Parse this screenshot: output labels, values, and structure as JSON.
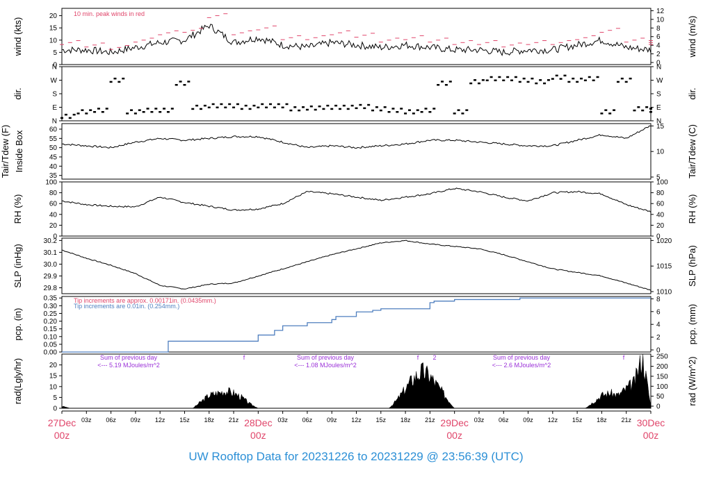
{
  "footer_title": "UW Rooftop Data for 20231226  to  20231229 @ 23:56:39  (UTC)",
  "colors": {
    "peak_red": "#e0456a",
    "pcp_blue": "#4f7fbf",
    "annot_purple": "#9a2fd8",
    "date_pink": "#e0456a",
    "footer_blue": "#2b8fd6"
  },
  "chart_data": [
    {
      "type": "line",
      "panel": "wind",
      "ylabel": "wind (kts)",
      "ylabel_right": "wind (m/s)",
      "yticks": [
        "0",
        "5",
        "10",
        "15",
        "20"
      ],
      "yticks_right": [
        "0",
        "2",
        "4",
        "6",
        "8",
        "10",
        "12"
      ],
      "ylim": [
        0,
        23
      ],
      "annotation": "10 min. peak winds in red",
      "x": [
        0,
        3,
        6,
        9,
        12,
        15,
        18,
        21,
        24,
        27,
        30,
        33,
        36,
        39,
        42,
        45,
        48,
        51,
        54,
        57,
        60,
        63,
        66,
        69,
        72
      ],
      "series": [
        {
          "values": [
            6,
            6,
            5,
            7,
            9,
            10,
            16,
            9,
            11,
            8,
            7,
            9,
            8,
            7,
            8,
            7,
            6,
            6,
            5,
            6,
            6,
            8,
            10,
            7,
            6
          ]
        },
        {
          "values": [
            9,
            8,
            7,
            10,
            13,
            14,
            20,
            13,
            15,
            11,
            11,
            13,
            12,
            10,
            11,
            10,
            9,
            9,
            8,
            9,
            9,
            11,
            14,
            10,
            9
          ]
        }
      ]
    },
    {
      "type": "scatter",
      "panel": "dir",
      "ylabel": "dir.",
      "ylabel_right": "dir.",
      "yticks": [
        "N",
        "E",
        "S",
        "W",
        "N"
      ],
      "ylim": [
        0,
        360
      ],
      "x": [
        0,
        2,
        4,
        6,
        8,
        10,
        12,
        14,
        16,
        18,
        20,
        22,
        24,
        26,
        28,
        30,
        32,
        34,
        36,
        38,
        40,
        42,
        44,
        46,
        48,
        50,
        52,
        54,
        56,
        58,
        60,
        62,
        64,
        66,
        68,
        70,
        72
      ],
      "series": [
        {
          "values": [
            30,
            60,
            70,
            270,
            60,
            70,
            70,
            250,
            90,
            100,
            100,
            90,
            100,
            100,
            80,
            85,
            90,
            90,
            95,
            80,
            70,
            60,
            70,
            250,
            60,
            260,
            280,
            280,
            270,
            260,
            290,
            270,
            280,
            60,
            270,
            80,
            70
          ]
        }
      ]
    },
    {
      "type": "line",
      "panel": "temp",
      "ylabel": "Tair/Tdew (F)",
      "ylabel_inner": "Inside Box",
      "ylabel_right": "Tair/Tdew (C)",
      "yticks": [
        "35",
        "40",
        "45",
        "50",
        "55",
        "60"
      ],
      "yticks_right": [
        "5",
        "10",
        "15"
      ],
      "ylim": [
        33,
        63
      ],
      "x": [
        0,
        3,
        6,
        9,
        12,
        15,
        18,
        21,
        24,
        27,
        30,
        33,
        36,
        39,
        42,
        45,
        48,
        51,
        54,
        57,
        60,
        63,
        66,
        69,
        72
      ],
      "series": [
        {
          "values": [
            52,
            51,
            50,
            53,
            55,
            54,
            55,
            56,
            56,
            53,
            50,
            51,
            50,
            51,
            52,
            54,
            54,
            53,
            52,
            51,
            51,
            54,
            57,
            55,
            62
          ]
        }
      ]
    },
    {
      "type": "line",
      "panel": "rh",
      "ylabel": "RH (%)",
      "ylabel_right": "RH (%)",
      "yticks": [
        "0",
        "20",
        "40",
        "60",
        "80",
        "100"
      ],
      "ylim": [
        0,
        100
      ],
      "x": [
        0,
        3,
        6,
        9,
        12,
        15,
        18,
        21,
        24,
        27,
        30,
        33,
        36,
        39,
        42,
        45,
        48,
        51,
        54,
        57,
        60,
        63,
        66,
        69,
        72
      ],
      "series": [
        {
          "values": [
            65,
            58,
            55,
            54,
            72,
            62,
            55,
            48,
            50,
            60,
            82,
            78,
            72,
            66,
            72,
            78,
            88,
            82,
            72,
            65,
            80,
            82,
            78,
            58,
            45
          ]
        }
      ]
    },
    {
      "type": "line",
      "panel": "slp",
      "ylabel": "SLP (inHg)",
      "ylabel_right": "SLP (hPa)",
      "yticks": [
        "29.8",
        "29.9",
        "30.0",
        "30.1",
        "30.2"
      ],
      "yticks_right": [
        "1010",
        "1015",
        "1020"
      ],
      "ylim": [
        29.75,
        30.22
      ],
      "x": [
        0,
        3,
        6,
        9,
        12,
        15,
        18,
        21,
        24,
        27,
        30,
        33,
        36,
        39,
        42,
        45,
        48,
        51,
        54,
        57,
        60,
        63,
        66,
        69,
        72
      ],
      "series": [
        {
          "values": [
            30.12,
            30.05,
            29.99,
            29.92,
            29.82,
            29.79,
            29.83,
            29.84,
            29.9,
            29.96,
            30.02,
            30.08,
            30.13,
            30.18,
            30.2,
            30.17,
            30.15,
            30.13,
            30.08,
            30.02,
            29.96,
            29.93,
            29.9,
            29.84,
            29.78
          ]
        }
      ]
    },
    {
      "type": "line",
      "panel": "pcp",
      "ylabel": "pcp. (in)",
      "ylabel_right": "pcp. (mm)",
      "yticks": [
        "0.00",
        "0.05",
        "0.10",
        "0.15",
        "0.20",
        "0.25",
        "0.30",
        "0.35"
      ],
      "yticks_right": [
        "0",
        "2",
        "4",
        "6",
        "8"
      ],
      "ylim": [
        0,
        0.36
      ],
      "note_red": "Tip increments are approx. 0.00171in. (0.0435mm.)",
      "note_blue": "Tip increments are 0.01in. (0.254mm.)",
      "x": [
        0,
        12,
        13,
        23,
        24,
        26,
        27,
        30,
        33,
        33.5,
        36,
        38,
        39,
        41,
        45,
        45.5,
        48,
        50,
        53,
        56,
        57,
        63,
        72
      ],
      "series": [
        {
          "values": [
            0,
            0,
            0.07,
            0.07,
            0.11,
            0.14,
            0.17,
            0.19,
            0.21,
            0.23,
            0.26,
            0.27,
            0.28,
            0.28,
            0.32,
            0.33,
            0.34,
            0.34,
            0.34,
            0.35,
            0.35,
            0.35,
            0.35
          ]
        }
      ]
    },
    {
      "type": "area",
      "panel": "rad",
      "ylabel": "rad(Lgly/hr)",
      "ylabel_right": "rad (W/m^2)",
      "yticks": [
        "0",
        "5",
        "10",
        "15",
        "20"
      ],
      "yticks_right": [
        "0",
        "50",
        "100",
        "150",
        "200",
        "250"
      ],
      "ylim": [
        0,
        25
      ],
      "sum_labels": [
        {
          "title": "Sum of previous day",
          "value": "<--- 5.19 MJoules/m^2"
        },
        {
          "title": "Sum of previous day",
          "value": "<--- 1.08 MJoules/m^2"
        },
        {
          "title": "Sum of previous day",
          "value": "<--- 2.6 MJoules/m^2"
        }
      ],
      "flags": [
        "f",
        "f",
        "2",
        "f"
      ],
      "x": [
        0,
        1,
        16,
        17,
        18,
        19,
        20,
        21,
        22,
        23,
        24,
        40,
        41,
        42,
        43,
        44,
        45,
        46,
        47,
        48,
        64,
        65,
        66,
        67,
        68,
        69,
        70,
        71,
        72
      ],
      "series": [
        {
          "values": [
            1,
            0,
            0,
            3,
            6,
            7,
            8,
            7,
            5,
            2,
            0,
            0,
            4,
            9,
            14,
            17,
            15,
            10,
            5,
            0,
            0,
            3,
            6,
            7,
            6,
            9,
            12,
            24,
            1
          ]
        }
      ]
    },
    {
      "type": "axis",
      "panel": "time-axis",
      "xticks": [
        "03z",
        "06z",
        "09z",
        "12z",
        "15z",
        "18z",
        "21z",
        "03z",
        "06z",
        "09z",
        "12z",
        "15z",
        "18z",
        "21z",
        "03z",
        "06z",
        "09z",
        "12z",
        "15z",
        "18z",
        "21z"
      ],
      "date_labels": [
        {
          "date": "27Dec",
          "hour": "00z"
        },
        {
          "date": "28Dec",
          "hour": "00z"
        },
        {
          "date": "29Dec",
          "hour": "00z"
        },
        {
          "date": "30Dec",
          "hour": "00z"
        }
      ]
    }
  ]
}
